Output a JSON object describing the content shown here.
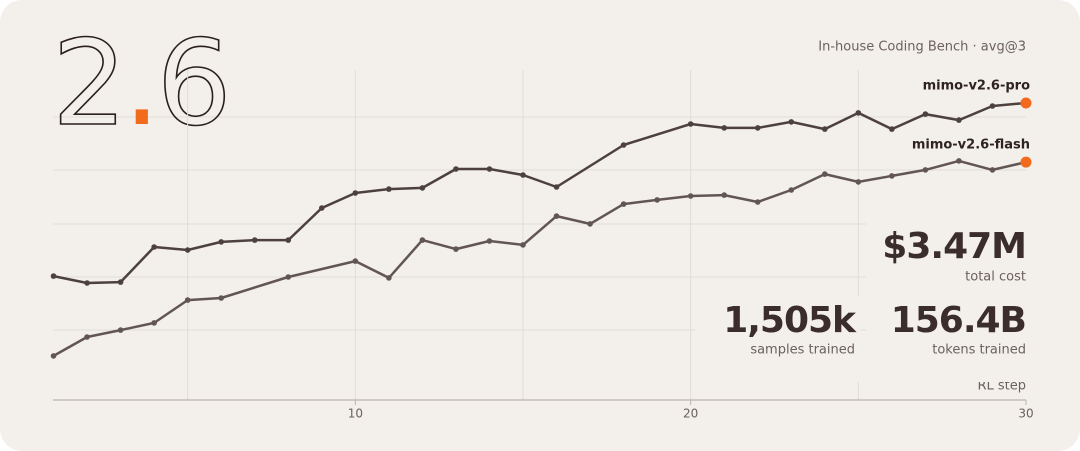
{
  "chart_data": {
    "type": "line",
    "logo": "2.6",
    "subtitle": "In-house Coding Bench · avg@3",
    "x_label": "RL step",
    "xlim": [
      0,
      30
    ],
    "xticks": [
      10,
      20,
      30
    ],
    "xgrid": [
      5,
      10,
      15,
      20,
      25
    ],
    "ylim": [
      0,
      100
    ],
    "end_marker_color": "#f26b1d",
    "series": [
      {
        "name": "mimo-v2.6-pro",
        "color": "#4d413e",
        "x": [
          1,
          2,
          3,
          4,
          5,
          6,
          7,
          8,
          9,
          10,
          11,
          12,
          13,
          14,
          15,
          16,
          18,
          20,
          21,
          22,
          23,
          24,
          25,
          26,
          27,
          28,
          29,
          30
        ],
        "values": [
          41.3,
          39,
          39.3,
          51,
          50,
          52.7,
          53.3,
          53.3,
          64,
          69,
          70.3,
          70.7,
          77,
          77,
          75,
          71,
          85,
          92,
          90.7,
          90.7,
          92.7,
          90.3,
          95.7,
          90.3,
          95.3,
          93.3,
          98,
          99
        ]
      },
      {
        "name": "mimo-v2.6-flash",
        "color": "#625653",
        "x": [
          1,
          2,
          3,
          4,
          5,
          6,
          8,
          10,
          11,
          12,
          13,
          14,
          15,
          16,
          17,
          18,
          19,
          20,
          21,
          22,
          23,
          24,
          25,
          26,
          27,
          28,
          29,
          30
        ],
        "values": [
          14.7,
          21,
          23.3,
          25.7,
          33.3,
          34,
          41,
          46.3,
          40.7,
          53.3,
          50.3,
          53,
          51.7,
          61.3,
          58.7,
          65.3,
          66.7,
          68,
          68.3,
          66,
          70,
          75.3,
          72.7,
          74.7,
          76.7,
          79.7,
          76.7,
          79.3
        ]
      }
    ],
    "stats": [
      {
        "value": "$3.47M",
        "label": "total cost"
      },
      {
        "value": "1,505k",
        "label": "samples trained"
      },
      {
        "value": "156.4B",
        "label": "tokens trained"
      }
    ]
  }
}
